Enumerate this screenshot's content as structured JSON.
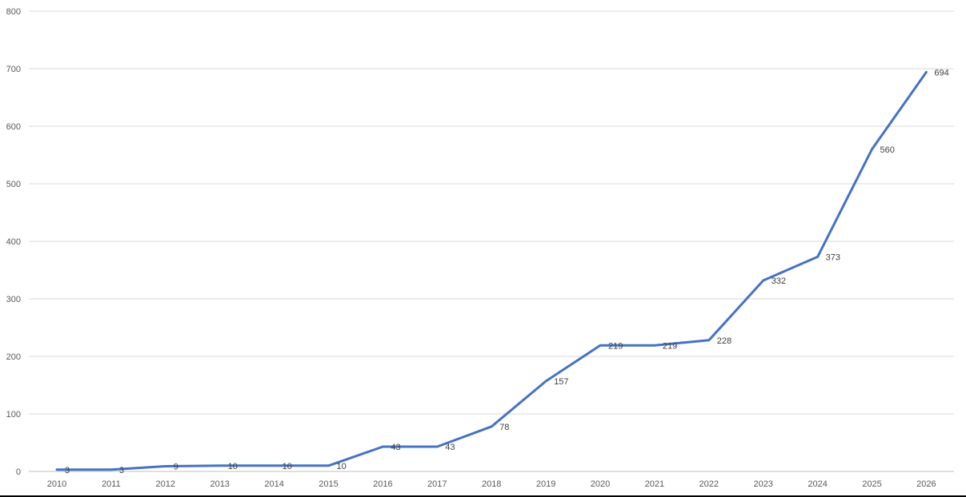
{
  "chart_data": {
    "type": "line",
    "title": "",
    "xlabel": "",
    "ylabel": "",
    "categories": [
      "2010",
      "2011",
      "2012",
      "2013",
      "2014",
      "2015",
      "2016",
      "2017",
      "2018",
      "2019",
      "2020",
      "2021",
      "2022",
      "2023",
      "2024",
      "2025",
      "2026"
    ],
    "series": [
      {
        "values": [
          3,
          3,
          9,
          10,
          10,
          10,
          43,
          43,
          78,
          157,
          219,
          219,
          228,
          332,
          373,
          560,
          694
        ],
        "color": "#4472c4"
      }
    ],
    "ylim": [
      0,
      800
    ],
    "yticks": [
      0,
      100,
      200,
      300,
      400,
      500,
      600,
      700,
      800
    ],
    "grid": true,
    "legend": "none",
    "data_labels": true
  }
}
